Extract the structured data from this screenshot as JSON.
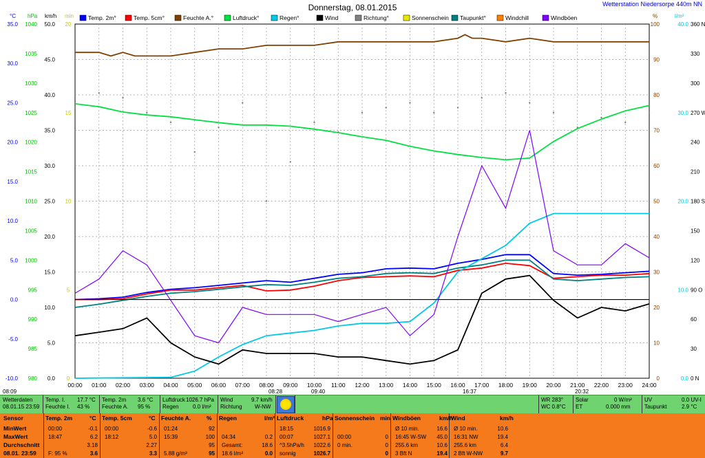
{
  "header": {
    "title": "Donnerstag, 08.01.2015",
    "station": "Wetterstation Niedersorpe 440m NN"
  },
  "legend": [
    {
      "label": "Temp. 2m°",
      "color": "#0000ff"
    },
    {
      "label": "Temp. 5cm°",
      "color": "#ff0000"
    },
    {
      "label": "Feuchte A.°",
      "color": "#804000"
    },
    {
      "label": "Luftdruck°",
      "color": "#00e040"
    },
    {
      "label": "Regen°",
      "color": "#00c8e8"
    },
    {
      "label": "Wind",
      "color": "#000000"
    },
    {
      "label": "Richtung°",
      "color": "#808080"
    },
    {
      "label": "Sonnenschein",
      "color": "#e8e800"
    },
    {
      "label": "Taupunkt°",
      "color": "#008080"
    },
    {
      "label": "Windchill",
      "color": "#ff8000"
    },
    {
      "label": "Windböen",
      "color": "#8000ff"
    }
  ],
  "chart_data": {
    "type": "line",
    "x_ticks": [
      "00:00",
      "01:00",
      "02:00",
      "03:00",
      "04:00",
      "05:00",
      "06:00",
      "07:00",
      "08:00",
      "09:00",
      "10:00",
      "11:00",
      "12:00",
      "13:00",
      "14:00",
      "15:00",
      "16:00",
      "17:00",
      "18:00",
      "19:00",
      "20:00",
      "21:00",
      "22:00",
      "23:00",
      "24:00"
    ],
    "axes": {
      "celsius": {
        "unit": "°C",
        "ticks": [
          "35.0",
          "30.0",
          "25.0",
          "20.0",
          "15.0",
          "10.0",
          "5.0",
          "0.0",
          "-5.0",
          "-10.0"
        ],
        "color": "#0000ff"
      },
      "hpa": {
        "unit": "hPa",
        "ticks": [
          "1040",
          "1035",
          "1030",
          "1025",
          "1020",
          "1015",
          "1010",
          "1005",
          "1000",
          "995",
          "990",
          "985",
          "980"
        ],
        "color": "#00c000"
      },
      "kmh": {
        "unit": "km/h",
        "ticks": [
          "50.0",
          "45.0",
          "40.0",
          "35.0",
          "30.0",
          "25.0",
          "20.0",
          "15.0",
          "10.0",
          "5.0",
          "0.0"
        ],
        "color": "#000000"
      },
      "min": {
        "unit": "min",
        "ticks": [
          "20",
          "15",
          "10",
          "5",
          "0"
        ],
        "color": "#c8c800"
      },
      "percent": {
        "unit": "%",
        "ticks": [
          "100",
          "90",
          "80",
          "70",
          "60",
          "50",
          "40",
          "30",
          "20",
          "10",
          "0"
        ],
        "color": "#804000"
      },
      "lm2": {
        "unit": "l/m²",
        "ticks": [
          "40.0",
          "30.0",
          "20.0",
          "10.0",
          "0.0"
        ],
        "color": "#00c8e8"
      },
      "deg": {
        "ticks": [
          "360 N",
          "330",
          "300",
          "270 W",
          "240",
          "210",
          "180 S",
          "150",
          "120",
          "90 O",
          "60",
          "30",
          "0 N"
        ],
        "color": "#000000"
      }
    },
    "markers": [
      "08:09",
      "08:28",
      "09:40",
      "16:37",
      "20:32"
    ],
    "series": [
      {
        "name": "Feuchte A.°",
        "axis": "percent",
        "x": [
          0,
          1,
          1.5,
          2,
          2.5,
          3,
          4,
          5,
          6,
          7,
          8,
          9,
          10,
          11,
          12,
          13,
          14,
          15,
          16,
          16.3,
          16.6,
          17,
          18,
          19,
          20,
          21,
          22,
          23,
          24
        ],
        "y": [
          92,
          92,
          91,
          92,
          91,
          91,
          91,
          92,
          93,
          93,
          94,
          94,
          94,
          95,
          95,
          95,
          95,
          95,
          96,
          97,
          96,
          96,
          95,
          96,
          95,
          95,
          95,
          95,
          95
        ]
      },
      {
        "name": "Luftdruck°",
        "axis": "hpa",
        "x": [
          0,
          1,
          2,
          3,
          4,
          5,
          6,
          7,
          8,
          9,
          10,
          11,
          12,
          13,
          14,
          15,
          16,
          17,
          18,
          19,
          20,
          21,
          22,
          23,
          24
        ],
        "y": [
          1026.5,
          1026.0,
          1025.1,
          1024.6,
          1024.3,
          1023.8,
          1023.3,
          1022.9,
          1022.9,
          1022.7,
          1022.2,
          1021.6,
          1020.9,
          1020.3,
          1019.3,
          1018.5,
          1017.9,
          1017.4,
          1017.0,
          1017.3,
          1020.1,
          1022.3,
          1023.9,
          1025.3,
          1026.2
        ]
      },
      {
        "name": "Temp. 2m°",
        "axis": "celsius",
        "x": [
          0,
          1,
          2,
          3,
          4,
          5,
          6,
          7,
          8,
          9,
          10,
          11,
          12,
          13,
          14,
          15,
          16,
          17,
          18,
          19,
          20,
          21,
          22,
          23,
          24
        ],
        "y": [
          0.0,
          0.1,
          0.3,
          0.9,
          1.3,
          1.5,
          1.8,
          2.1,
          2.4,
          2.2,
          2.7,
          3.2,
          3.4,
          3.9,
          4.0,
          3.9,
          4.6,
          5.1,
          5.7,
          5.7,
          3.3,
          3.1,
          3.2,
          3.4,
          3.6
        ]
      },
      {
        "name": "Temp. 5cm°",
        "axis": "celsius",
        "x": [
          0,
          1,
          2,
          3,
          4,
          5,
          6,
          7,
          8,
          9,
          10,
          11,
          12,
          13,
          14,
          15,
          16,
          17,
          18,
          19,
          20,
          21,
          22,
          23,
          24
        ],
        "y": [
          0.0,
          0.0,
          0.1,
          0.7,
          1.2,
          1.2,
          1.5,
          1.8,
          1.1,
          1.2,
          1.7,
          2.4,
          2.8,
          2.9,
          3.0,
          2.9,
          3.7,
          4.0,
          4.6,
          4.3,
          2.7,
          2.9,
          3.1,
          3.1,
          3.3
        ]
      },
      {
        "name": "Taupunkt°",
        "axis": "celsius",
        "x": [
          0,
          1,
          2,
          3,
          4,
          5,
          6,
          7,
          8,
          9,
          10,
          11,
          12,
          13,
          14,
          15,
          16,
          17,
          18,
          19,
          20,
          21,
          22,
          23,
          24
        ],
        "y": [
          -1.0,
          -0.6,
          -0.1,
          0.4,
          0.8,
          1.0,
          1.3,
          1.6,
          1.9,
          1.8,
          2.2,
          2.7,
          2.9,
          3.3,
          3.4,
          3.3,
          4.0,
          4.4,
          5.0,
          5.0,
          2.6,
          2.4,
          2.6,
          2.8,
          2.9
        ]
      },
      {
        "name": "Regen°",
        "axis": "lm2",
        "x": [
          0,
          4,
          5,
          6,
          7,
          8,
          9,
          10,
          11,
          12,
          13,
          14,
          15,
          16,
          17,
          18,
          19,
          20,
          21,
          22,
          23,
          24
        ],
        "y": [
          0.0,
          0.1,
          0.8,
          2.4,
          3.8,
          4.8,
          5.1,
          5.4,
          5.9,
          6.2,
          6.2,
          6.4,
          8.5,
          12.0,
          13.5,
          15.0,
          17.5,
          18.6,
          18.6,
          18.6,
          18.6,
          18.6
        ]
      },
      {
        "name": "Wind",
        "axis": "kmh",
        "x": [
          0,
          1,
          2,
          3,
          4,
          5,
          6,
          7,
          8,
          9,
          10,
          11,
          12,
          13,
          14,
          15,
          16,
          17,
          18,
          19,
          20,
          21,
          22,
          23,
          24
        ],
        "y": [
          6.0,
          6.5,
          7.0,
          8.5,
          5.0,
          3.0,
          2.0,
          4.0,
          3.5,
          3.5,
          3.5,
          3.0,
          3.0,
          2.5,
          2.0,
          2.5,
          4.0,
          12.0,
          14.0,
          14.5,
          11.0,
          8.5,
          10.0,
          9.5,
          10.5
        ]
      },
      {
        "name": "Windböen",
        "axis": "kmh",
        "x": [
          0,
          1,
          2,
          3,
          4,
          5,
          6,
          7,
          8,
          9,
          10,
          11,
          12,
          13,
          14,
          15,
          16,
          17,
          18,
          19,
          20,
          21,
          22,
          23,
          24
        ],
        "y": [
          12.0,
          14.0,
          18.0,
          16.0,
          11.0,
          6.0,
          5.0,
          10.0,
          9.0,
          9.0,
          9.0,
          8.0,
          9.0,
          10.0,
          6.0,
          9.0,
          20.0,
          30.0,
          24.0,
          35.0,
          18.0,
          16.0,
          16.0,
          19.0,
          17.0
        ]
      },
      {
        "name": "Richtung°",
        "axis": "deg",
        "x": [
          0,
          1,
          2,
          3,
          4,
          5,
          6,
          7,
          8,
          9,
          10,
          11,
          12,
          13,
          14,
          15,
          16,
          17,
          18,
          19,
          20,
          21,
          22,
          23,
          24
        ],
        "y": [
          275,
          290,
          285,
          270,
          260,
          230,
          255,
          280,
          180,
          220,
          260,
          250,
          270,
          275,
          280,
          270,
          275,
          285,
          290,
          280,
          270,
          255,
          265,
          260,
          270
        ]
      }
    ]
  },
  "summary": {
    "wetterdaten": "Wetterdaten",
    "datetime": "08.01.15 23:59",
    "temp_i_label": "Temp. I.",
    "temp_i": "17.7 °C",
    "feuchte_i_label": "Feuchte I.",
    "feuchte_i": "43 %",
    "temp2m_label": "Temp. 2m",
    "temp2m": "3.6 °C",
    "feuchte_a_label": "Feuchte A.",
    "feuchte_a": "95 %",
    "luftdruck_label": "Luftdruck",
    "luftdruck": "1026.7 hPa",
    "regen_label": "Regen",
    "regen": "0.0 l/m²",
    "wind_label": "Wind",
    "wind": "9.7 km/h",
    "richtung_label": "Richtung",
    "richtung": "W-NW",
    "wr": "WR 283°",
    "wc": "WC 0.8°C",
    "solar_label": "Solar",
    "solar": "0 W/m²",
    "et_label": "ET",
    "et": "0.000 mm",
    "uv_label": "UV",
    "uv": "0.0 UV-I",
    "taupunkt_label": "Taupunkt",
    "taupunkt": "2.9 °C"
  },
  "table": {
    "row_labels": [
      "Sensor",
      "MinWert",
      "MaxWert",
      "Durchschnitt",
      "08.01. 23:59"
    ],
    "columns": [
      {
        "head": [
          "Temp. 2m",
          "°C"
        ],
        "rows": [
          [
            "00:00",
            "-0.1"
          ],
          [
            "18:47",
            "6.2"
          ],
          [
            "",
            "3.18"
          ],
          [
            "F: 95 %",
            "3.6"
          ]
        ]
      },
      {
        "head": [
          "Temp. 5cm",
          "°C"
        ],
        "rows": [
          [
            "00:00",
            "-0.6"
          ],
          [
            "18:12",
            "5.0"
          ],
          [
            "",
            "2.27"
          ],
          [
            "",
            "3.3"
          ]
        ]
      },
      {
        "head": [
          "Feuchte A.",
          "%"
        ],
        "rows": [
          [
            "01:24",
            "92"
          ],
          [
            "15:39",
            "100"
          ],
          [
            "",
            "95"
          ],
          [
            "5.88 g/m³",
            "95"
          ]
        ]
      },
      {
        "head": [
          "Regen",
          "l/m²"
        ],
        "rows": [
          [
            "",
            ""
          ],
          [
            "04:34",
            "0.2"
          ],
          [
            "Gesamt:",
            "18.6"
          ],
          [
            "18.6 l/m²",
            "0.0"
          ]
        ]
      },
      {
        "head": [
          "Luftdruck",
          "hPa"
        ],
        "rows": [
          [
            "18:15",
            "1016.9"
          ],
          [
            "00:07",
            "1027.1"
          ],
          [
            "^3.5hPa/h",
            "1022.6"
          ],
          [
            "sonnig",
            "1026.7"
          ]
        ]
      },
      {
        "head": [
          "Sonnenschein",
          "min"
        ],
        "rows": [
          [
            "",
            ""
          ],
          [
            "00:00",
            "0"
          ],
          [
            "0 min.",
            "0"
          ],
          [
            "",
            "0"
          ]
        ]
      },
      {
        "head": [
          "Windböen",
          "km/h"
        ],
        "rows": [
          [
            "Ø 10 min.",
            "16.6"
          ],
          [
            "16:45  W-SW",
            "45.0"
          ],
          [
            "255.6 km",
            "10.6"
          ],
          [
            "3 Bft N",
            "19.4"
          ]
        ]
      },
      {
        "head": [
          "Wind",
          "km/h"
        ],
        "rows": [
          [
            "Ø 10 min.",
            "10.6"
          ],
          [
            "16:31  NW",
            "19.4"
          ],
          [
            "255.6 km",
            "6.4"
          ],
          [
            "2 Bft W-NW",
            "9.7"
          ]
        ]
      }
    ]
  }
}
